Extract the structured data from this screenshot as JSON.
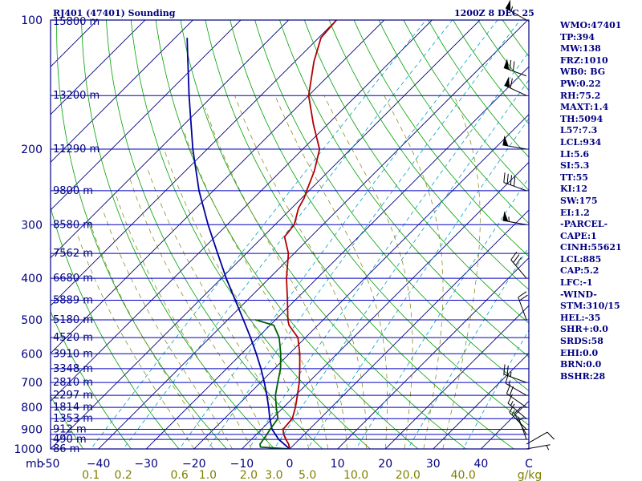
{
  "header": {
    "station_title": "RJ401 (47401) Sounding",
    "datetime": "1200Z  8 DEC 25"
  },
  "colors": {
    "frame": "#000080",
    "isobar": "#0000c0",
    "isotherm": "#000080",
    "dry_adiabat": "#00a000",
    "moist_adiabat": "#808000",
    "mixing_ratio": "#00a0c0",
    "temperature": "#b00000",
    "dewpoint": "#006000",
    "parcel": "#0000a0",
    "axis_label": "#000080",
    "mixing_label": "#808000",
    "text": "#000080"
  },
  "chart_data": {
    "type": "skew-t",
    "title": "RJ401 (47401) Sounding",
    "datetime": "1200Z  8 DEC 25",
    "pressure_range_mb": [
      1000,
      100
    ],
    "temperature_range_c": [
      -50,
      50
    ],
    "pressure_unit_label": "mb",
    "mixing_ratio_unit_label": "g/kg",
    "pressure_levels": [
      {
        "p": 100,
        "label": "100"
      },
      {
        "p": 150,
        "label": ""
      },
      {
        "p": 200,
        "label": "200"
      },
      {
        "p": 250,
        "label": ""
      },
      {
        "p": 300,
        "label": "300"
      },
      {
        "p": 350,
        "label": ""
      },
      {
        "p": 400,
        "label": "400"
      },
      {
        "p": 450,
        "label": ""
      },
      {
        "p": 500,
        "label": "500"
      },
      {
        "p": 550,
        "label": ""
      },
      {
        "p": 600,
        "label": "600"
      },
      {
        "p": 650,
        "label": ""
      },
      {
        "p": 700,
        "label": "700"
      },
      {
        "p": 750,
        "label": ""
      },
      {
        "p": 800,
        "label": "800"
      },
      {
        "p": 850,
        "label": ""
      },
      {
        "p": 900,
        "label": "900"
      },
      {
        "p": 925,
        "label": ""
      },
      {
        "p": 950,
        "label": ""
      },
      {
        "p": 1000,
        "label": "1000"
      }
    ],
    "height_labels": [
      {
        "p": 100,
        "label": "15800 m"
      },
      {
        "p": 150,
        "label": "13200 m"
      },
      {
        "p": 200,
        "label": "11290 m"
      },
      {
        "p": 250,
        "label": "9800 m"
      },
      {
        "p": 300,
        "label": "8580 m"
      },
      {
        "p": 350,
        "label": "7562 m"
      },
      {
        "p": 400,
        "label": "6680 m"
      },
      {
        "p": 450,
        "label": "5889 m"
      },
      {
        "p": 500,
        "label": "5180 m"
      },
      {
        "p": 550,
        "label": "4520 m"
      },
      {
        "p": 600,
        "label": "3910 m"
      },
      {
        "p": 650,
        "label": "3348 m"
      },
      {
        "p": 700,
        "label": "2810 m"
      },
      {
        "p": 750,
        "label": "2297 m"
      },
      {
        "p": 800,
        "label": "1814 m"
      },
      {
        "p": 850,
        "label": "1353 m"
      },
      {
        "p": 900,
        "label": "912 m"
      },
      {
        "p": 950,
        "label": "490 m"
      },
      {
        "p": 1000,
        "label": "86 m"
      }
    ],
    "temperature_ticks": [
      {
        "t": -50,
        "label": "-50"
      },
      {
        "t": -40,
        "label": "−40"
      },
      {
        "t": -30,
        "label": "−30"
      },
      {
        "t": -20,
        "label": "−20"
      },
      {
        "t": -10,
        "label": "−10"
      },
      {
        "t": 0,
        "label": "0"
      },
      {
        "t": 10,
        "label": "10"
      },
      {
        "t": 20,
        "label": "20"
      },
      {
        "t": 30,
        "label": "30"
      },
      {
        "t": 40,
        "label": "40"
      },
      {
        "t": 50,
        "label": "C"
      }
    ],
    "mixing_ratio_labels": [
      {
        "w": 0.1,
        "label": "0.1"
      },
      {
        "w": 0.2,
        "label": "0.2"
      },
      {
        "w": 0.6,
        "label": "0.6"
      },
      {
        "w": 1.0,
        "label": "1.0"
      },
      {
        "w": 2.0,
        "label": "2.0"
      },
      {
        "w": 3.0,
        "label": "3.0"
      },
      {
        "w": 5.0,
        "label": "5.0"
      },
      {
        "w": 10.0,
        "label": "10.0"
      },
      {
        "w": 20.0,
        "label": "20.0"
      },
      {
        "w": 40.0,
        "label": "40.0"
      }
    ],
    "isotherm_range_c": [
      -130,
      50
    ],
    "isotherm_step_c": 10,
    "dry_adiabats_theta_k": [
      230,
      240,
      250,
      260,
      270,
      280,
      290,
      300,
      310,
      320,
      330,
      340,
      350,
      360,
      370,
      380,
      390,
      400,
      410,
      420,
      430,
      440,
      450,
      460,
      470,
      480,
      490,
      500
    ],
    "moist_adiabats_c": [
      -20,
      -16,
      -12,
      -8,
      -4,
      0,
      4,
      8,
      12,
      16,
      20,
      24,
      28,
      32
    ],
    "mixing_ratio_lines_gkg": [
      0.1,
      0.2,
      0.6,
      1.0,
      2.0,
      3.0,
      5.0,
      10.0,
      20.0,
      40.0
    ],
    "series": [
      {
        "name": "Temperature",
        "points": [
          {
            "p": 1000,
            "t": 0.0
          },
          {
            "p": 975,
            "t": -1.2
          },
          {
            "p": 950,
            "t": -2.8
          },
          {
            "p": 925,
            "t": -4.3
          },
          {
            "p": 900,
            "t": -5.5
          },
          {
            "p": 850,
            "t": -5.8
          },
          {
            "p": 800,
            "t": -7.5
          },
          {
            "p": 750,
            "t": -9.6
          },
          {
            "p": 700,
            "t": -11.9
          },
          {
            "p": 650,
            "t": -14.7
          },
          {
            "p": 600,
            "t": -17.8
          },
          {
            "p": 550,
            "t": -21.6
          },
          {
            "p": 515,
            "t": -26.0
          },
          {
            "p": 500,
            "t": -27.4
          },
          {
            "p": 450,
            "t": -31.6
          },
          {
            "p": 400,
            "t": -36.4
          },
          {
            "p": 350,
            "t": -41.2
          },
          {
            "p": 320,
            "t": -45.5
          },
          {
            "p": 300,
            "t": -46.0
          },
          {
            "p": 275,
            "t": -48.5
          },
          {
            "p": 260,
            "t": -49.5
          },
          {
            "p": 250,
            "t": -50.5
          },
          {
            "p": 225,
            "t": -53.0
          },
          {
            "p": 200,
            "t": -56.5
          },
          {
            "p": 175,
            "t": -63.0
          },
          {
            "p": 150,
            "t": -70.0
          },
          {
            "p": 125,
            "t": -76.0
          },
          {
            "p": 110,
            "t": -79.5
          },
          {
            "p": 100,
            "t": -80.0
          }
        ]
      },
      {
        "name": "Dewpoint",
        "points": [
          {
            "p": 1000,
            "td": 0.0
          },
          {
            "p": 995,
            "td": -3.5
          },
          {
            "p": 990,
            "td": -6.5
          },
          {
            "p": 975,
            "td": -7.2
          },
          {
            "p": 950,
            "td": -7.5
          },
          {
            "p": 925,
            "td": -7.8
          },
          {
            "p": 900,
            "td": -8.2
          },
          {
            "p": 850,
            "td": -8.8
          },
          {
            "p": 800,
            "td": -11.5
          },
          {
            "p": 750,
            "td": -14.2
          },
          {
            "p": 700,
            "td": -16.4
          },
          {
            "p": 650,
            "td": -18.7
          },
          {
            "p": 600,
            "td": -21.8
          },
          {
            "p": 550,
            "td": -25.5
          },
          {
            "p": 515,
            "td": -29.2
          },
          {
            "p": 500,
            "td": -34.2
          }
        ]
      },
      {
        "name": "Parcel",
        "points": [
          {
            "p": 1000,
            "t": 0.0
          },
          {
            "p": 950,
            "t": -4.3
          },
          {
            "p": 900,
            "t": -7.8
          },
          {
            "p": 885,
            "t": -8.6
          },
          {
            "p": 850,
            "t": -10.5
          },
          {
            "p": 800,
            "t": -13.1
          },
          {
            "p": 750,
            "t": -16.0
          },
          {
            "p": 700,
            "t": -19.2
          },
          {
            "p": 650,
            "t": -22.8
          },
          {
            "p": 600,
            "t": -26.9
          },
          {
            "p": 550,
            "t": -31.5
          },
          {
            "p": 500,
            "t": -36.7
          },
          {
            "p": 450,
            "t": -42.5
          },
          {
            "p": 400,
            "t": -49.0
          },
          {
            "p": 350,
            "t": -56.0
          },
          {
            "p": 300,
            "t": -64.0
          },
          {
            "p": 250,
            "t": -73.0
          },
          {
            "p": 200,
            "t": -83.0
          },
          {
            "p": 150,
            "t": -95.0
          },
          {
            "p": 120,
            "t": -104.0
          },
          {
            "p": 110,
            "t": -107.5
          }
        ]
      }
    ],
    "wind_barbs": [
      {
        "p": 1000,
        "dir": 80,
        "spd": 5
      },
      {
        "p": 975,
        "dir": 60,
        "spd": 10
      },
      {
        "p": 950,
        "dir": 340,
        "spd": 5
      },
      {
        "p": 925,
        "dir": 330,
        "spd": 10
      },
      {
        "p": 900,
        "dir": 315,
        "spd": 15
      },
      {
        "p": 850,
        "dir": 310,
        "spd": 15
      },
      {
        "p": 800,
        "dir": 305,
        "spd": 20
      },
      {
        "p": 750,
        "dir": 300,
        "spd": 15
      },
      {
        "p": 700,
        "dir": 290,
        "spd": 25
      },
      {
        "p": 500,
        "dir": 340,
        "spd": 20
      },
      {
        "p": 400,
        "dir": 320,
        "spd": 30
      },
      {
        "p": 300,
        "dir": 280,
        "spd": 55
      },
      {
        "p": 250,
        "dir": 290,
        "spd": 40
      },
      {
        "p": 200,
        "dir": 280,
        "spd": 50
      },
      {
        "p": 150,
        "dir": 295,
        "spd": 60
      },
      {
        "p": 135,
        "dir": 290,
        "spd": 70
      },
      {
        "p": 100,
        "dir": 300,
        "spd": 55
      }
    ]
  },
  "stats": [
    "WMO:47401",
    "TP:394",
    "MW:138",
    "FRZ:1010",
    "WB0: BG",
    "PW:0.22",
    "RH:75.2",
    "MAXT:1.4",
    "TH:5094",
    "L57:7.3",
    "LCL:934",
    "LI:5.6",
    "SI:5.3",
    "TT:55",
    "KI:12",
    "SW:175",
    "EI:1.2",
    "-PARCEL-",
    "CAPE:1",
    "CINH:55621",
    "LCL:885",
    "CAP:5.2",
    "LFC:-1",
    "-WIND-",
    "STM:310/15",
    "HEL:-35",
    "SHR+:0.0",
    "SRDS:58",
    "EHI:0.0",
    "BRN:0.0",
    "BSHR:28"
  ]
}
